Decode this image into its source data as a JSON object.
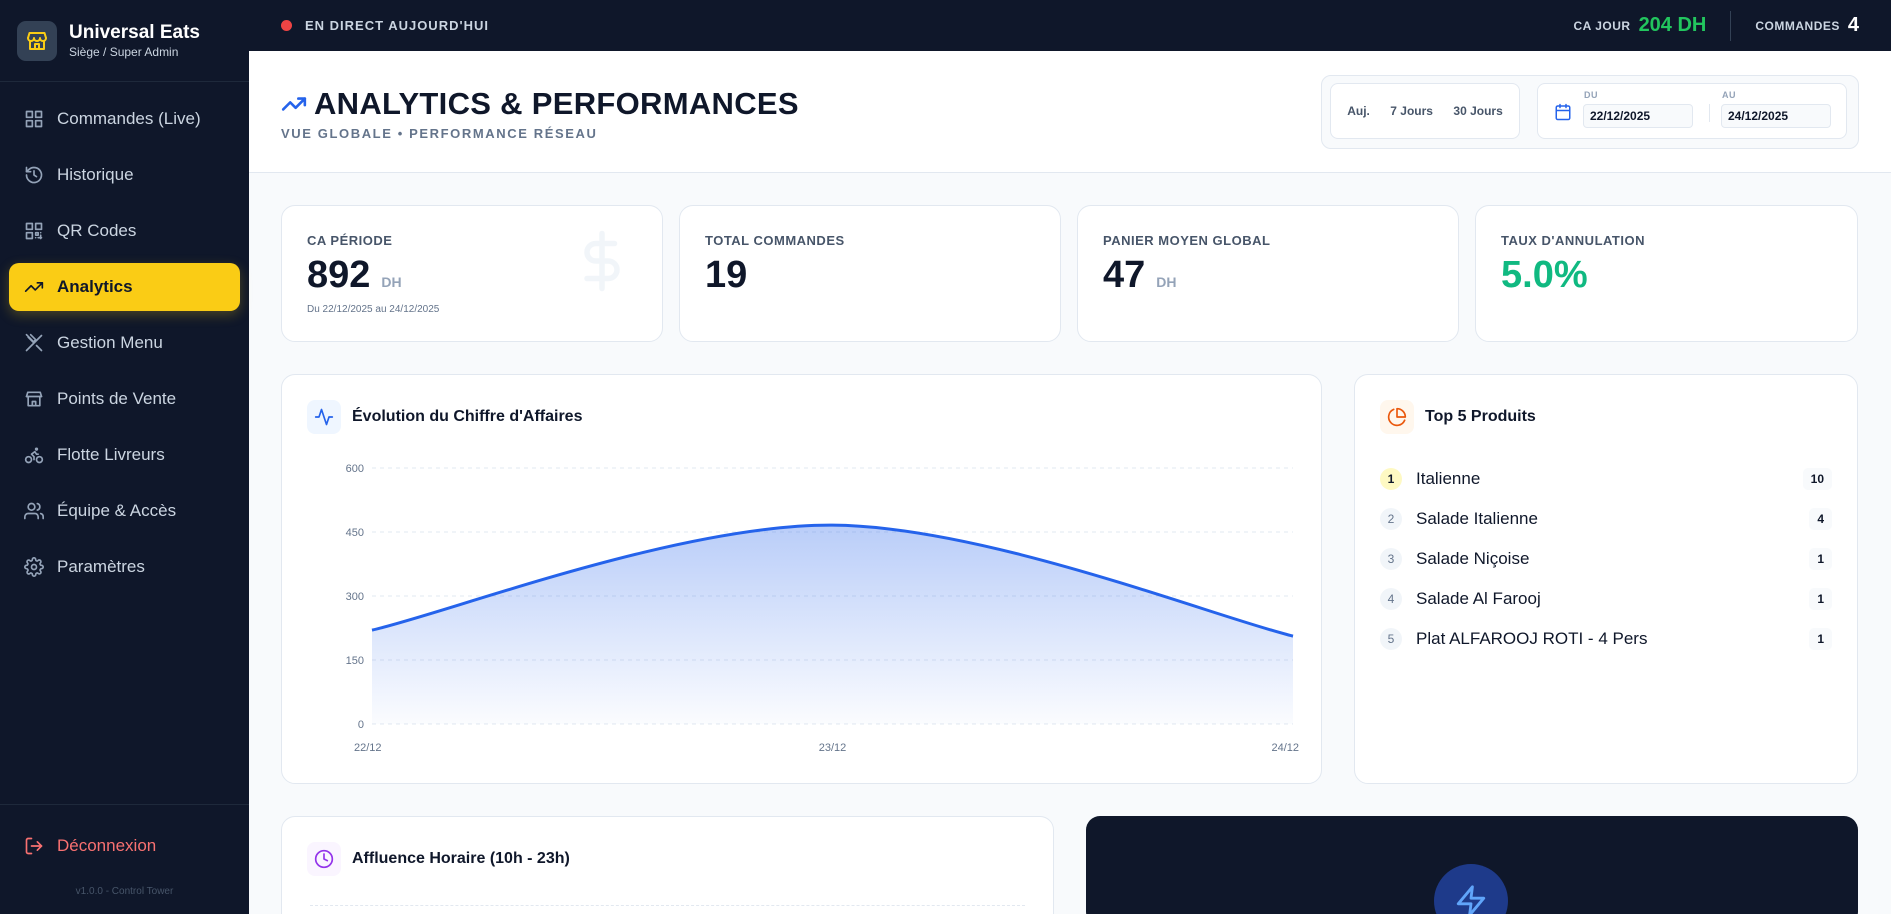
{
  "brand": {
    "name": "Universal Eats",
    "subtitle": "Siège / Super Admin"
  },
  "nav": [
    {
      "label": "Commandes (Live)",
      "icon": "grid-icon",
      "active": false
    },
    {
      "label": "Historique",
      "icon": "history-icon",
      "active": false
    },
    {
      "label": "QR Codes",
      "icon": "qr-icon",
      "active": false
    },
    {
      "label": "Analytics",
      "icon": "trending-up-icon",
      "active": true
    },
    {
      "label": "Gestion Menu",
      "icon": "utensils-icon",
      "active": false
    },
    {
      "label": "Points de Vente",
      "icon": "store-icon",
      "active": false
    },
    {
      "label": "Flotte Livreurs",
      "icon": "bike-icon",
      "active": false
    },
    {
      "label": "Équipe & Accès",
      "icon": "users-icon",
      "active": false
    },
    {
      "label": "Paramètres",
      "icon": "settings-icon",
      "active": false
    }
  ],
  "logout_label": "Déconnexion",
  "version": "v1.0.0 - Control Tower",
  "topbar": {
    "live_label": "EN DIRECT AUJOURD'HUI",
    "ca_label": "CA JOUR",
    "ca_value": "204 DH",
    "orders_label": "COMMANDES",
    "orders_value": "4"
  },
  "header": {
    "title": "ANALYTICS & PERFORMANCES",
    "subtitle": "VUE GLOBALE • PERFORMANCE RÉSEAU",
    "quick_filters": [
      "Auj.",
      "7 Jours",
      "30 Jours"
    ],
    "from_label": "DU",
    "from_value": "22/12/2025",
    "to_label": "AU",
    "to_value": "24/12/2025"
  },
  "kpis": [
    {
      "label": "CA PÉRIODE",
      "value": "892",
      "unit": "DH",
      "note": "Du 22/12/2025 au 24/12/2025"
    },
    {
      "label": "TOTAL COMMANDES",
      "value": "19",
      "unit": "",
      "note": ""
    },
    {
      "label": "PANIER MOYEN GLOBAL",
      "value": "47",
      "unit": "DH",
      "note": ""
    },
    {
      "label": "TAUX D'ANNULATION",
      "value": "5.0%",
      "unit": "",
      "note": ""
    }
  ],
  "colors": {
    "accent": "#facc15",
    "success": "#10b981",
    "chart_line": "#2563eb",
    "danger": "#f87171",
    "sidebar_bg": "#0f172a"
  },
  "revenue_card": {
    "title": "Évolution du Chiffre d'Affaires"
  },
  "chart_data": {
    "type": "area",
    "title": "Évolution du Chiffre d'Affaires",
    "x": [
      "22/12",
      "23/12",
      "24/12"
    ],
    "yticks": [
      "600",
      "450",
      "300",
      "150",
      "0"
    ],
    "series": [
      {
        "values": [
          220,
          466,
          206
        ]
      }
    ],
    "ylim": [
      0,
      600
    ],
    "grid": true
  },
  "top_products": {
    "title": "Top 5 Produits",
    "items": [
      {
        "rank": "1",
        "name": "Italienne",
        "count": "10"
      },
      {
        "rank": "2",
        "name": "Salade Italienne",
        "count": "4"
      },
      {
        "rank": "3",
        "name": "Salade Niçoise",
        "count": "1"
      },
      {
        "rank": "4",
        "name": "Salade Al Farooj",
        "count": "1"
      },
      {
        "rank": "5",
        "name": "Plat ALFAROOJ ROTI - 4 Pers",
        "count": "1"
      }
    ]
  },
  "traffic_card": {
    "title": "Affluence Horaire (10h - 23h)"
  }
}
